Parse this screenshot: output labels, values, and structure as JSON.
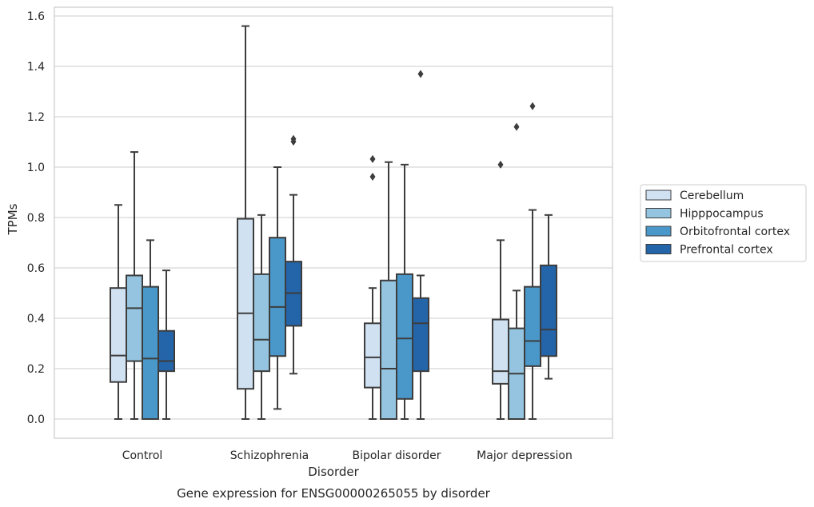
{
  "caption": "Gene expression for ENSG00000265055 by disorder",
  "chart_data": {
    "type": "box",
    "title": "",
    "xlabel": "Disorder",
    "ylabel": "TPMs",
    "ylim": [
      -0.075,
      1.645
    ],
    "yticks": [
      0.0,
      0.2,
      0.4,
      0.6,
      0.8,
      1.0,
      1.2,
      1.4,
      1.6
    ],
    "ytick_labels": [
      "0.0",
      "0.2",
      "0.4",
      "0.6",
      "0.8",
      "1.0",
      "1.2",
      "1.4",
      "1.6"
    ],
    "grid": "horizontal",
    "legend_position": "right",
    "categories": [
      "Control",
      "Schizophrenia",
      "Bipolar disorder",
      "Major depression"
    ],
    "series": [
      {
        "name": "Cerebellum",
        "color": "#d0e1f2",
        "boxes": [
          {
            "whislo": 0.0,
            "q1": 0.147,
            "med": 0.252,
            "q3": 0.52,
            "whishi": 0.85,
            "fliers": []
          },
          {
            "whislo": 0.0,
            "q1": 0.12,
            "med": 0.42,
            "q3": 0.795,
            "whishi": 1.56,
            "fliers": []
          },
          {
            "whislo": 0.0,
            "q1": 0.125,
            "med": 0.245,
            "q3": 0.38,
            "whishi": 0.52,
            "fliers": [
              0.962,
              1.032
            ]
          },
          {
            "whislo": 0.0,
            "q1": 0.14,
            "med": 0.19,
            "q3": 0.395,
            "whishi": 0.71,
            "fliers": [
              1.01
            ]
          }
        ]
      },
      {
        "name": "Hipppocampus",
        "color": "#94c4df",
        "boxes": [
          {
            "whislo": 0.0,
            "q1": 0.23,
            "med": 0.44,
            "q3": 0.57,
            "whishi": 1.06,
            "fliers": []
          },
          {
            "whislo": 0.0,
            "q1": 0.19,
            "med": 0.315,
            "q3": 0.575,
            "whishi": 0.81,
            "fliers": []
          },
          {
            "whislo": 0.0,
            "q1": 0.0,
            "med": 0.2,
            "q3": 0.55,
            "whishi": 1.02,
            "fliers": []
          },
          {
            "whislo": 0.0,
            "q1": 0.0,
            "med": 0.18,
            "q3": 0.36,
            "whishi": 0.51,
            "fliers": [
              1.16
            ]
          }
        ]
      },
      {
        "name": "Orbitofrontal cortex",
        "color": "#4a98c9",
        "boxes": [
          {
            "whislo": 0.0,
            "q1": 0.0,
            "med": 0.24,
            "q3": 0.525,
            "whishi": 0.71,
            "fliers": []
          },
          {
            "whislo": 0.04,
            "q1": 0.25,
            "med": 0.445,
            "q3": 0.72,
            "whishi": 1.0,
            "fliers": []
          },
          {
            "whislo": 0.0,
            "q1": 0.08,
            "med": 0.32,
            "q3": 0.575,
            "whishi": 1.01,
            "fliers": []
          },
          {
            "whislo": 0.0,
            "q1": 0.21,
            "med": 0.31,
            "q3": 0.525,
            "whishi": 0.83,
            "fliers": [
              1.242
            ]
          }
        ]
      },
      {
        "name": "Prefrontal cortex",
        "color": "#2464a8",
        "boxes": [
          {
            "whislo": 0.0,
            "q1": 0.19,
            "med": 0.23,
            "q3": 0.35,
            "whishi": 0.59,
            "fliers": []
          },
          {
            "whislo": 0.18,
            "q1": 0.37,
            "med": 0.5,
            "q3": 0.625,
            "whishi": 0.89,
            "fliers": [
              1.101,
              1.112
            ]
          },
          {
            "whislo": 0.0,
            "q1": 0.19,
            "med": 0.38,
            "q3": 0.48,
            "whishi": 0.57,
            "fliers": [
              1.37
            ]
          },
          {
            "whislo": 0.16,
            "q1": 0.25,
            "med": 0.355,
            "q3": 0.61,
            "whishi": 0.81,
            "fliers": []
          }
        ]
      }
    ]
  }
}
